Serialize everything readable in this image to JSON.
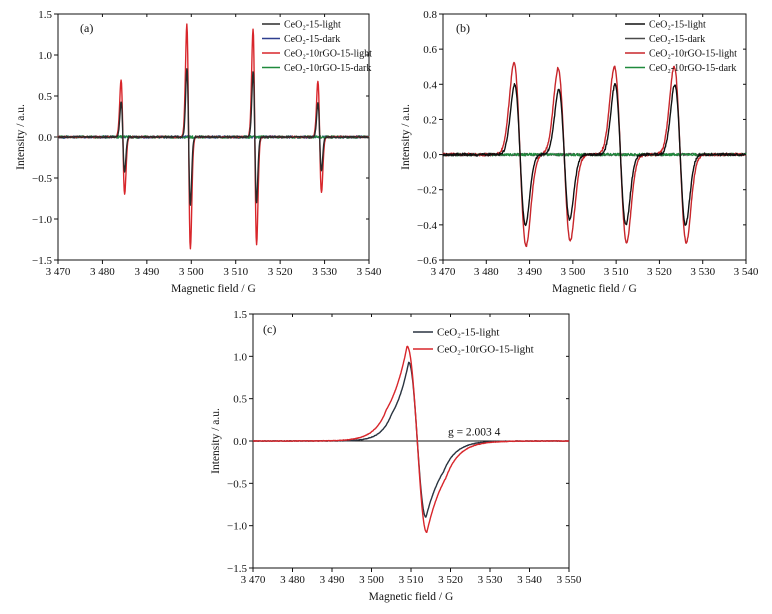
{
  "chart_data": [
    {
      "id": "a",
      "type": "line",
      "panel_label": "(a)",
      "xlabel": "Magnetic field / G",
      "ylabel": "Intensity / a.u.",
      "xlim": [
        3470,
        3540
      ],
      "ylim": [
        -1.5,
        1.5
      ],
      "xticks": [
        3470,
        3480,
        3490,
        3500,
        3510,
        3520,
        3530,
        3540
      ],
      "xtick_labels": [
        "3 470",
        "3 480",
        "3 490",
        "3 500",
        "3 510",
        "3 520",
        "3 530",
        "3 540"
      ],
      "yticks": [
        -1.5,
        -1.0,
        -0.5,
        0.0,
        0.5,
        1.0,
        1.5
      ],
      "ytick_labels": [
        "−1.5",
        "−1.0",
        "−0.5",
        "0.0",
        "0.5",
        "1.0",
        "1.5"
      ],
      "legend_position": "top-right",
      "grid": false,
      "series": [
        {
          "name": "CeO₂-15-light",
          "color": "#2b2b2b",
          "kind": "derivative",
          "lines": [
            {
              "center": 3484.6,
              "amplitude": 0.43,
              "width": 0.38
            },
            {
              "center": 3499.4,
              "amplitude": 0.84,
              "width": 0.38
            },
            {
              "center": 3514.3,
              "amplitude": 0.8,
              "width": 0.38
            },
            {
              "center": 3528.9,
              "amplitude": 0.42,
              "width": 0.38
            }
          ]
        },
        {
          "name": "CeO₂-15-dark",
          "color": "#2e3f8f",
          "kind": "noise",
          "level": 0.0
        },
        {
          "name": "CeO₂-10rGO-15-light",
          "color": "#d8262b",
          "kind": "derivative",
          "lines": [
            {
              "center": 3484.6,
              "amplitude": 0.7,
              "width": 0.4
            },
            {
              "center": 3499.4,
              "amplitude": 1.37,
              "width": 0.4
            },
            {
              "center": 3514.3,
              "amplitude": 1.32,
              "width": 0.4
            },
            {
              "center": 3528.9,
              "amplitude": 0.68,
              "width": 0.4
            }
          ]
        },
        {
          "name": "CeO₂-10rGO-15-dark",
          "color": "#1f8a3c",
          "kind": "noise",
          "level": 0.0
        }
      ]
    },
    {
      "id": "b",
      "type": "line",
      "panel_label": "(b)",
      "xlabel": "Magnetic field / G",
      "ylabel": "Intensity / a.u.",
      "xlim": [
        3470,
        3540
      ],
      "ylim": [
        -0.6,
        0.8
      ],
      "xticks": [
        3470,
        3480,
        3490,
        3500,
        3510,
        3520,
        3530,
        3540
      ],
      "xtick_labels": [
        "3 470",
        "3 480",
        "3 490",
        "3 500",
        "3 510",
        "3 520",
        "3 530",
        "3 540"
      ],
      "yticks": [
        -0.6,
        -0.4,
        -0.2,
        0.0,
        0.2,
        0.4,
        0.6,
        0.8
      ],
      "ytick_labels": [
        "−0.6",
        "−0.4",
        "−0.2",
        "0.0",
        "0.2",
        "0.4",
        "0.6",
        "0.8"
      ],
      "legend_position": "top-right",
      "grid": false,
      "series": [
        {
          "name": "CeO₂-15-light",
          "color": "#111111",
          "kind": "derivative",
          "lines": [
            {
              "center": 3487.8,
              "amplitude": 0.4,
              "width": 1.25
            },
            {
              "center": 3498.0,
              "amplitude": 0.37,
              "width": 1.25
            },
            {
              "center": 3511.0,
              "amplitude": 0.4,
              "width": 1.25
            },
            {
              "center": 3524.8,
              "amplitude": 0.4,
              "width": 1.25
            }
          ]
        },
        {
          "name": "CeO₂-15-dark",
          "color": "#4a4a4a",
          "kind": "noise",
          "level": 0.0
        },
        {
          "name": "CeO₂-10rGO-15-light",
          "color": "#c8262b",
          "kind": "derivative",
          "lines": [
            {
              "center": 3487.8,
              "amplitude": 0.52,
              "width": 1.4
            },
            {
              "center": 3498.0,
              "amplitude": 0.49,
              "width": 1.4
            },
            {
              "center": 3511.0,
              "amplitude": 0.5,
              "width": 1.4
            },
            {
              "center": 3524.8,
              "amplitude": 0.5,
              "width": 1.4
            }
          ]
        },
        {
          "name": "CeO₂-10rGO-15-dark",
          "color": "#1f8a3c",
          "kind": "noise",
          "level": 0.0
        }
      ]
    },
    {
      "id": "c",
      "type": "line",
      "panel_label": "(c)",
      "xlabel": "Magnetic field / G",
      "ylabel": "Intensity / a.u.",
      "xlim": [
        3470,
        3550
      ],
      "ylim": [
        -1.5,
        1.5
      ],
      "xticks": [
        3470,
        3480,
        3490,
        3500,
        3510,
        3520,
        3530,
        3540,
        3550
      ],
      "xtick_labels": [
        "3 470",
        "3 480",
        "3 490",
        "3 500",
        "3 510",
        "3 520",
        "3 530",
        "3 540",
        "3 550"
      ],
      "yticks": [
        -1.5,
        -1.0,
        -0.5,
        0.0,
        0.5,
        1.0,
        1.5
      ],
      "ytick_labels": [
        "−1.5",
        "−1.0",
        "−0.5",
        "0.0",
        "0.5",
        "1.0",
        "1.5"
      ],
      "legend_position": "top-right",
      "grid": false,
      "annotation": {
        "text": "g = 2.003 4",
        "x": 3526,
        "y": 0.04
      },
      "reference_line": {
        "y": 0.0
      },
      "series": [
        {
          "name": "CeO₂-15-light",
          "color": "#2a3440",
          "kind": "single",
          "center": 3511.6,
          "peak_x": 3509.4,
          "peak_y": 0.93,
          "trough_x": 3513.8,
          "trough_y": -0.9
        },
        {
          "name": "CeO₂-10rGO-15-light",
          "color": "#d8262b",
          "kind": "single",
          "center": 3511.6,
          "peak_x": 3509.0,
          "peak_y": 1.12,
          "trough_x": 3514.0,
          "trough_y": -1.08
        }
      ]
    }
  ]
}
